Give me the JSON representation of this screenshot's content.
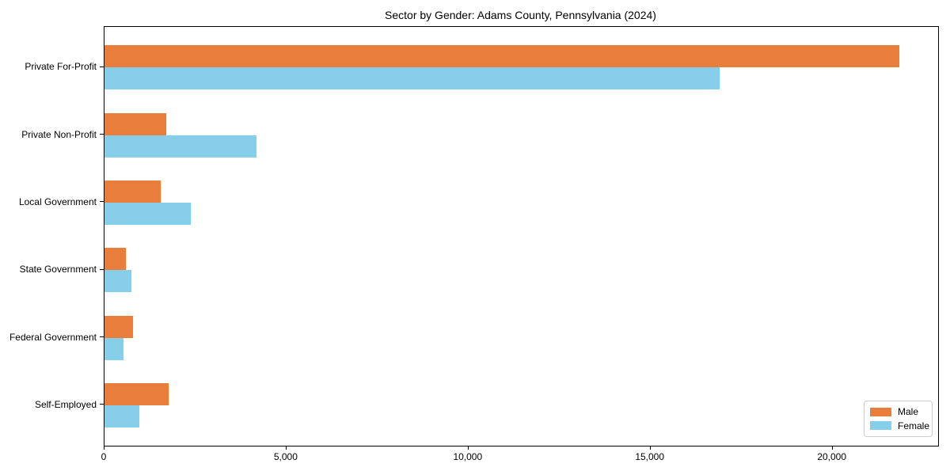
{
  "chart_data": {
    "type": "bar",
    "orientation": "horizontal",
    "title": "Sector by Gender: Adams County, Pennsylvania (2024)",
    "categories": [
      "Private For-Profit",
      "Private Non-Profit",
      "Local Government",
      "State Government",
      "Federal Government",
      "Self-Employed"
    ],
    "series": [
      {
        "name": "Male",
        "color": "#e87d3c",
        "values": [
          21840,
          1700,
          1540,
          590,
          780,
          1750
        ]
      },
      {
        "name": "Female",
        "color": "#87ceeb",
        "values": [
          16900,
          4170,
          2370,
          740,
          530,
          960
        ]
      }
    ],
    "xlabel": "",
    "ylabel": "",
    "xlim": [
      0,
      22900
    ],
    "xticks": [
      0,
      5000,
      10000,
      15000,
      20000
    ],
    "xtick_labels": [
      "0",
      "5,000",
      "10,000",
      "15,000",
      "20,000"
    ],
    "grid": false,
    "legend_position": "lower right"
  },
  "colors": {
    "male": "#e87d3c",
    "female": "#87ceeb",
    "spine": "#000000",
    "legend_border": "#cccccc",
    "background": "#ffffff"
  }
}
